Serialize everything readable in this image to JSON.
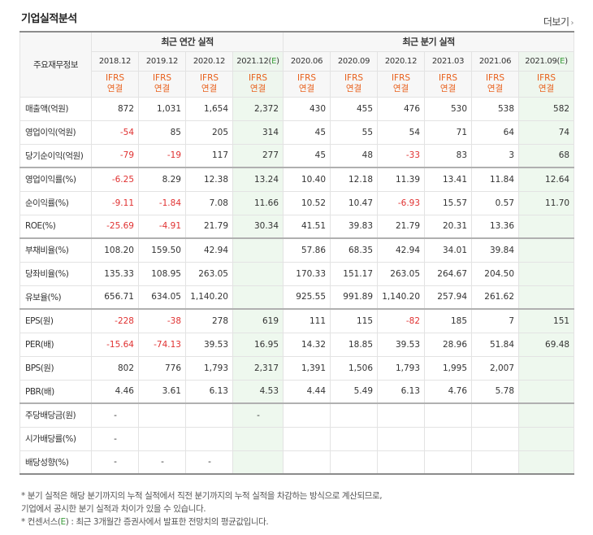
{
  "header": {
    "title": "기업실적분석",
    "more_label": "더보기",
    "more_icon": "chevron-right-icon"
  },
  "table": {
    "rowhead_label": "주요재무정보",
    "groups": {
      "annual": "최근 연간 실적",
      "quarter": "최근 분기 실적"
    },
    "periods": [
      "2018.12",
      "2019.12",
      "2020.12",
      "2021.12(E)",
      "2020.06",
      "2020.09",
      "2020.12",
      "2021.03",
      "2021.06",
      "2021.09(E)"
    ],
    "ifrs_top": "IFRS",
    "ifrs_bottom": "연결",
    "rows": [
      {
        "label": "매출액(억원)",
        "values": [
          "872",
          "1,031",
          "1,654",
          "2,372",
          "430",
          "455",
          "476",
          "530",
          "538",
          "582"
        ]
      },
      {
        "label": "영업이익(억원)",
        "values": [
          "-54",
          "85",
          "205",
          "314",
          "45",
          "55",
          "54",
          "71",
          "64",
          "74"
        ]
      },
      {
        "label": "당기순이익(억원)",
        "values": [
          "-79",
          "-19",
          "117",
          "277",
          "45",
          "48",
          "-33",
          "83",
          "3",
          "68"
        ]
      },
      {
        "label": "영업이익률(%)",
        "values": [
          "-6.25",
          "8.29",
          "12.38",
          "13.24",
          "10.40",
          "12.18",
          "11.39",
          "13.41",
          "11.84",
          "12.64"
        ]
      },
      {
        "label": "순이익률(%)",
        "values": [
          "-9.11",
          "-1.84",
          "7.08",
          "11.66",
          "10.52",
          "10.47",
          "-6.93",
          "15.57",
          "0.57",
          "11.70"
        ]
      },
      {
        "label": "ROE(%)",
        "values": [
          "-25.69",
          "-4.91",
          "21.79",
          "30.34",
          "41.51",
          "39.83",
          "21.79",
          "20.31",
          "13.36",
          ""
        ]
      },
      {
        "label": "부채비율(%)",
        "values": [
          "108.20",
          "159.50",
          "42.94",
          "",
          "57.86",
          "68.35",
          "42.94",
          "34.01",
          "39.84",
          ""
        ]
      },
      {
        "label": "당좌비율(%)",
        "values": [
          "135.33",
          "108.95",
          "263.05",
          "",
          "170.33",
          "151.17",
          "263.05",
          "264.67",
          "204.50",
          ""
        ]
      },
      {
        "label": "유보율(%)",
        "values": [
          "656.71",
          "634.05",
          "1,140.20",
          "",
          "925.55",
          "991.89",
          "1,140.20",
          "257.94",
          "261.62",
          ""
        ]
      },
      {
        "label": "EPS(원)",
        "values": [
          "-228",
          "-38",
          "278",
          "619",
          "111",
          "115",
          "-82",
          "185",
          "7",
          "151"
        ]
      },
      {
        "label": "PER(배)",
        "values": [
          "-15.64",
          "-74.13",
          "39.53",
          "16.95",
          "14.32",
          "18.85",
          "39.53",
          "28.96",
          "51.84",
          "69.48"
        ]
      },
      {
        "label": "BPS(원)",
        "values": [
          "802",
          "776",
          "1,793",
          "2,317",
          "1,391",
          "1,506",
          "1,793",
          "1,995",
          "2,007",
          ""
        ]
      },
      {
        "label": "PBR(배)",
        "values": [
          "4.46",
          "3.61",
          "6.13",
          "4.53",
          "4.44",
          "5.49",
          "6.13",
          "4.76",
          "5.78",
          ""
        ]
      },
      {
        "label": "주당배당금(원)",
        "values": [
          "-",
          "",
          "",
          "-",
          "",
          "",
          "",
          "",
          "",
          ""
        ]
      },
      {
        "label": "시가배당률(%)",
        "values": [
          "-",
          "",
          "",
          "",
          "",
          "",
          "",
          "",
          "",
          ""
        ]
      },
      {
        "label": "배당성향(%)",
        "values": [
          "-",
          "-",
          "-",
          "",
          "",
          "",
          "",
          "",
          "",
          ""
        ]
      }
    ]
  },
  "notes": {
    "line1": "* 분기 실적은 해당 분기까지의 누적 실적에서 직전 분기까지의 누적 실적을 차감하는 방식으로 계산되므로,",
    "line2": "기업에서 공시한 분기 실적과 차이가 있을 수 있습니다.",
    "line3_prefix": "* 컨센서스(",
    "line3_e": "E",
    "line3_suffix": ") : 최근 3개월간 증권사에서 발표한 전망치의 평균값입니다."
  },
  "colors": {
    "negative": "#e03131",
    "ifrs": "#e8601c",
    "estimate_bg": "#eef8ee",
    "estimate_mark": "#3a9d3a"
  }
}
